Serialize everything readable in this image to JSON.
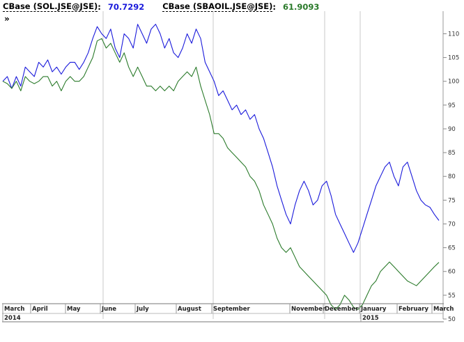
{
  "header": {
    "expand_glyph": "»",
    "series": [
      {
        "name": "CBase (SOL.JSE@JSE)",
        "value": "70.7292",
        "color": "#1a1adb"
      },
      {
        "name": "CBase (SBAOIL.JSE@JSE)",
        "value": "61.9093",
        "color": "#2a7a2a"
      }
    ]
  },
  "chart_data": {
    "type": "line",
    "ylim": [
      50,
      113
    ],
    "yticks": [
      50,
      55,
      60,
      65,
      70,
      75,
      80,
      85,
      90,
      95,
      100,
      105,
      110
    ],
    "months": [
      "March",
      "April",
      "May",
      "June",
      "July",
      "August",
      "September",
      "November",
      "December",
      "January",
      "February",
      "March"
    ],
    "years": [
      "2014",
      "2015"
    ],
    "grid": "vertical-at-quarters",
    "series": [
      {
        "name": "CBase (SOL.JSE@JSE)",
        "color": "#1a1adb",
        "values": [
          100,
          101,
          98.5,
          101,
          99,
          103,
          102,
          101,
          104,
          103,
          104.5,
          102,
          103,
          101.5,
          103,
          104,
          104,
          102.5,
          104,
          106,
          109,
          111.5,
          110,
          109,
          111,
          107,
          105,
          110,
          109,
          107,
          112,
          110,
          108,
          111,
          112,
          110,
          107,
          109,
          106,
          105,
          107,
          110,
          108,
          111,
          109,
          104,
          102,
          100,
          97,
          98,
          96,
          94,
          95,
          93,
          94,
          92,
          93,
          90,
          88,
          85,
          82,
          78,
          75,
          72,
          70,
          74,
          77,
          79,
          77,
          74,
          75,
          78,
          79,
          76,
          72,
          70,
          68,
          66,
          64,
          66,
          69,
          72,
          75,
          78,
          80,
          82,
          83,
          80,
          78,
          82,
          83,
          80,
          77,
          75,
          74,
          73.5,
          72,
          70.7292
        ]
      },
      {
        "name": "CBase (SBAOIL.JSE@JSE)",
        "color": "#2a7a2a",
        "values": [
          100,
          99.5,
          98.5,
          100,
          98,
          101,
          100,
          99.5,
          100,
          101,
          101,
          99,
          100,
          98,
          100,
          101,
          100,
          100,
          101,
          103,
          105,
          108.5,
          109,
          107,
          108,
          106,
          104,
          106,
          103,
          101,
          103,
          101,
          99,
          99,
          98,
          99,
          98,
          99,
          98,
          100,
          101,
          102,
          101,
          103,
          99,
          96,
          93,
          89,
          89,
          88,
          86,
          85,
          84,
          83,
          82,
          80,
          79,
          77,
          74,
          72,
          70,
          67,
          65,
          64,
          65,
          63,
          61,
          60,
          59,
          58,
          57,
          56,
          55,
          53,
          52,
          53,
          55,
          54,
          52.5,
          52,
          53,
          55,
          57,
          58,
          60,
          61,
          62,
          61,
          60,
          59,
          58,
          57.5,
          57,
          58,
          59,
          60,
          61,
          61.9093
        ]
      }
    ]
  }
}
